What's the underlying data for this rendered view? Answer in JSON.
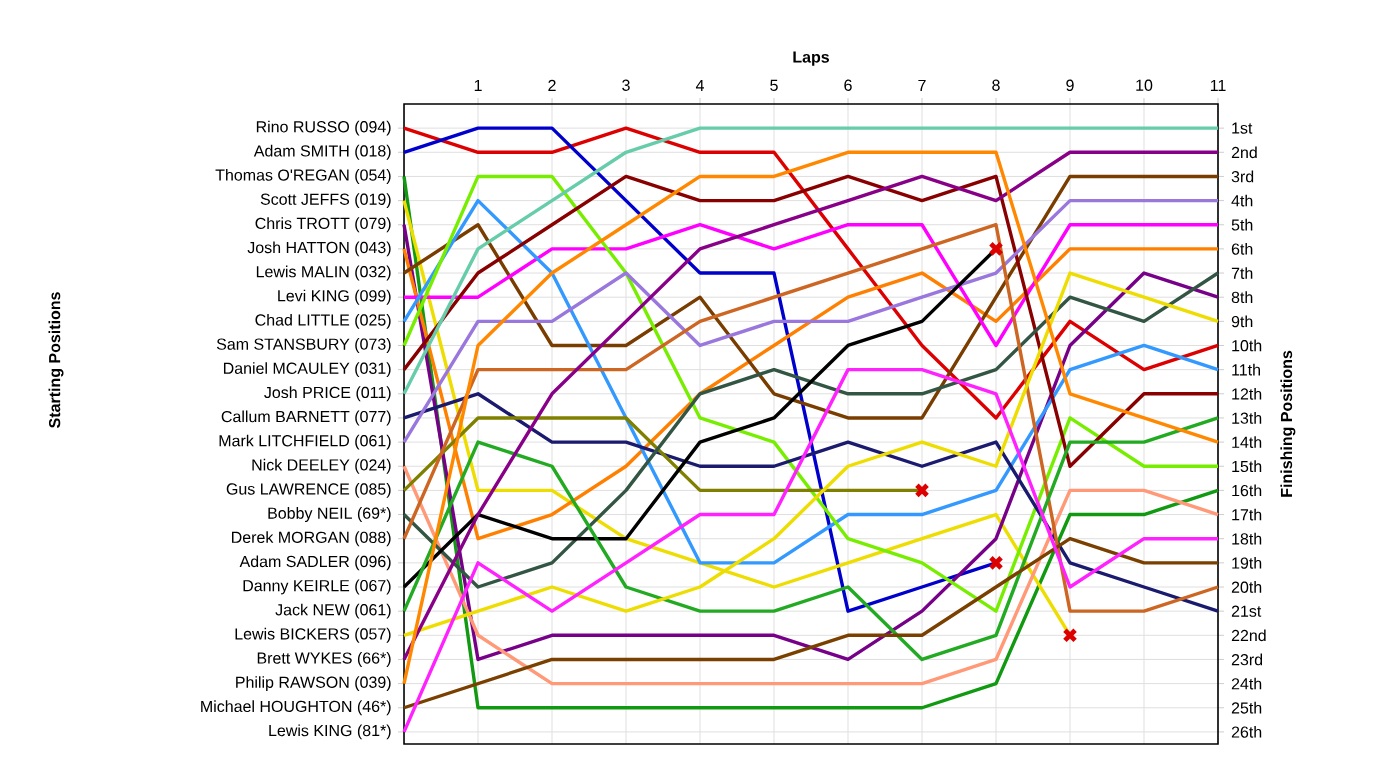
{
  "chart_data": {
    "type": "line",
    "xlabel": "Laps",
    "ylabel": "Finishing Positions",
    "annotations": [
      "Starting Positions",
      "Adam SADLER (096)"
    ],
    "x": [
      0,
      1,
      2,
      3,
      4,
      5,
      6,
      7,
      8,
      9,
      10,
      11
    ],
    "xlim": [
      0,
      11
    ],
    "xticks": [
      1,
      2,
      3,
      4,
      5,
      6,
      7,
      8,
      9,
      10,
      11
    ],
    "ylim": [
      26.5,
      0
    ],
    "yticks": [
      {
        "value": 1,
        "label": "1st"
      },
      {
        "value": 2,
        "label": "2nd"
      },
      {
        "value": 3,
        "label": "3rd"
      },
      {
        "value": 4,
        "label": "4th"
      },
      {
        "value": 5,
        "label": "5th"
      },
      {
        "value": 6,
        "label": "6th"
      },
      {
        "value": 7,
        "label": "7th"
      },
      {
        "value": 8,
        "label": "8th"
      },
      {
        "value": 9,
        "label": "9th"
      },
      {
        "value": 10,
        "label": "10th"
      },
      {
        "value": 11,
        "label": "11th"
      },
      {
        "value": 12,
        "label": "12th"
      },
      {
        "value": 13,
        "label": "13th"
      },
      {
        "value": 14,
        "label": "14th"
      },
      {
        "value": 15,
        "label": "15th"
      },
      {
        "value": 16,
        "label": "16th"
      },
      {
        "value": 17,
        "label": "17th"
      },
      {
        "value": 18,
        "label": "18th"
      },
      {
        "value": 19,
        "label": "19th"
      },
      {
        "value": 20,
        "label": "20th"
      },
      {
        "value": 21,
        "label": "21st"
      },
      {
        "value": 22,
        "label": "22nd"
      },
      {
        "value": 23,
        "label": "23rd"
      },
      {
        "value": 24,
        "label": "24th"
      },
      {
        "value": 25,
        "label": "25th"
      },
      {
        "value": 26,
        "label": "26th"
      }
    ],
    "grid": true,
    "marker": "none",
    "line_style": "solid",
    "series": [
      {
        "name": "Rino RUSSO (094)",
        "color": "#dd0000",
        "values": [
          1,
          2,
          2,
          1,
          2,
          2,
          6,
          10,
          13,
          9,
          11,
          10
        ]
      },
      {
        "name": "Adam SMITH (018)",
        "color": "#0000cc",
        "values": [
          2,
          1,
          1,
          4,
          7,
          7,
          21,
          20,
          19,
          null,
          null,
          null
        ]
      },
      {
        "name": "Thomas O'REGAN (054)",
        "color": "#119911",
        "values": [
          3,
          25,
          25,
          25,
          25,
          25,
          25,
          25,
          24,
          17,
          17,
          16
        ]
      },
      {
        "name": "Scott JEFFS (019)",
        "color": "#eedd00",
        "values": [
          4,
          16,
          16,
          18,
          19,
          20,
          19,
          18,
          17,
          22,
          null,
          null
        ]
      },
      {
        "name": "Chris TROTT (079)",
        "color": "#770088",
        "values": [
          5,
          23,
          22,
          22,
          22,
          22,
          23,
          21,
          18,
          10,
          7,
          8
        ]
      },
      {
        "name": "Josh HATTON (043)",
        "color": "#ff8000",
        "values": [
          6,
          18,
          17,
          15,
          12,
          10,
          8,
          7,
          9,
          6,
          6,
          6
        ]
      },
      {
        "name": "Lewis MALIN (032)",
        "color": "#7a3d00",
        "values": [
          7,
          5,
          10,
          10,
          8,
          12,
          13,
          13,
          8,
          3,
          3,
          3
        ]
      },
      {
        "name": "Levi KING (099)",
        "color": "#ff00ff",
        "values": [
          8,
          8,
          6,
          6,
          5,
          6,
          5,
          5,
          10,
          5,
          5,
          5
        ]
      },
      {
        "name": "Chad LITTLE (025)",
        "color": "#3399ff",
        "values": [
          9,
          4,
          7,
          13,
          19,
          19,
          17,
          17,
          16,
          11,
          10,
          11
        ]
      },
      {
        "name": "Sam STANSBURY (073)",
        "color": "#77ee00",
        "values": [
          10,
          3,
          3,
          7,
          13,
          14,
          18,
          19,
          21,
          13,
          15,
          15
        ]
      },
      {
        "name": "Daniel MCAULEY (031)",
        "color": "#880000",
        "values": [
          11,
          7,
          5,
          3,
          4,
          4,
          3,
          4,
          3,
          15,
          12,
          12
        ]
      },
      {
        "name": "Josh PRICE (011)",
        "color": "#66ccaa",
        "values": [
          12,
          6,
          4,
          2,
          1,
          1,
          1,
          1,
          1,
          1,
          1,
          1
        ]
      },
      {
        "name": "Callum BARNETT (077)",
        "color": "#1a1a6e",
        "values": [
          13,
          12,
          14,
          14,
          15,
          15,
          14,
          15,
          14,
          19,
          20,
          21
        ]
      },
      {
        "name": "Mark LITCHFIELD (061)",
        "color": "#9977dd",
        "values": [
          14,
          9,
          9,
          7,
          10,
          9,
          9,
          8,
          7,
          4,
          4,
          4
        ]
      },
      {
        "name": "Nick DEELEY (024)",
        "color": "#ff9977",
        "values": [
          15,
          22,
          24,
          24,
          24,
          24,
          24,
          24,
          23,
          16,
          16,
          17
        ]
      },
      {
        "name": "Gus LAWRENCE (085)",
        "color": "#808000",
        "values": [
          16,
          13,
          13,
          13,
          16,
          16,
          16,
          16,
          null,
          null,
          null,
          null
        ]
      },
      {
        "name": "Bobby NEIL (69*)",
        "color": "#335544",
        "values": [
          17,
          20,
          19,
          16,
          12,
          11,
          12,
          12,
          11,
          8,
          9,
          7
        ]
      },
      {
        "name": "Derek MORGAN (088)",
        "color": "#cc6622",
        "values": [
          18,
          11,
          11,
          11,
          9,
          8,
          7,
          6,
          5,
          21,
          21,
          20
        ]
      },
      {
        "name": "Danny KEIRLE (067)",
        "color": "#000000",
        "values": [
          20,
          17,
          18,
          18,
          14,
          13,
          10,
          9,
          6,
          null,
          null,
          null
        ]
      },
      {
        "name": "Jack NEW (061)",
        "color": "#22aa22",
        "values": [
          21,
          14,
          15,
          20,
          21,
          21,
          20,
          23,
          22,
          14,
          14,
          13
        ]
      },
      {
        "name": "Lewis BICKERS (057)",
        "color": "#eedd00",
        "values": [
          22,
          21,
          20,
          21,
          20,
          18,
          15,
          14,
          15,
          7,
          8,
          9
        ]
      },
      {
        "name": "Brett WYKES (66*)",
        "color": "#880088",
        "values": [
          23,
          17,
          12,
          9,
          6,
          5,
          4,
          3,
          4,
          2,
          2,
          2
        ]
      },
      {
        "name": "Philip RAWSON (039)",
        "color": "#ff8800",
        "values": [
          24,
          10,
          7,
          5,
          3,
          3,
          2,
          2,
          2,
          12,
          13,
          14
        ]
      },
      {
        "name": "Michael HOUGHTON (46*)",
        "color": "#7a4000",
        "values": [
          25,
          24,
          23,
          23,
          23,
          23,
          22,
          22,
          20,
          18,
          19,
          19
        ]
      },
      {
        "name": "Lewis KING (81*)",
        "color": "#ff22ff",
        "values": [
          26,
          19,
          21,
          19,
          17,
          17,
          11,
          11,
          12,
          20,
          18,
          18
        ]
      },
      {
        "type": "scatter",
        "marker": "cross",
        "color": "#dd0000",
        "x": [
          8,
          7,
          8,
          9
        ],
        "values": [
          6,
          16,
          19,
          22
        ]
      }
    ]
  }
}
